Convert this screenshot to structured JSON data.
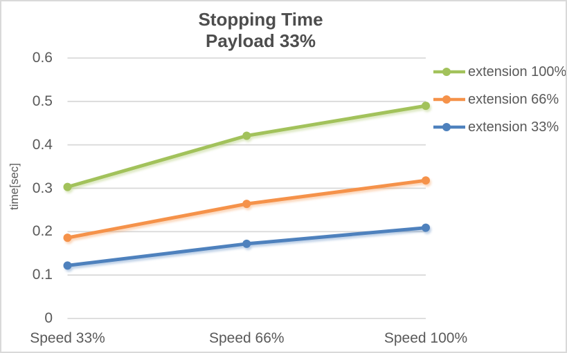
{
  "chart": {
    "title_line1": "Stopping Time",
    "title_line2": "Payload 33%",
    "y_axis_label": "time[sec]"
  },
  "chart_data": {
    "type": "line",
    "title": "Stopping Time Payload 33%",
    "categories": [
      "Speed 33%",
      "Speed 66%",
      "Speed 100%"
    ],
    "series": [
      {
        "name": "extension 100%",
        "color": "#A2C25B",
        "values": [
          0.303,
          0.421,
          0.49
        ]
      },
      {
        "name": "extension 66%",
        "color": "#F5924A",
        "values": [
          0.186,
          0.264,
          0.318
        ]
      },
      {
        "name": "extension 33%",
        "color": "#4E81BD",
        "values": [
          0.122,
          0.172,
          0.209
        ]
      }
    ],
    "xlabel": "",
    "ylabel": "time[sec]",
    "ylim": [
      0,
      0.6
    ],
    "y_ticks": [
      0.6,
      0.5,
      0.4,
      0.3,
      0.2,
      0.1,
      0
    ],
    "grid": true,
    "legend_position": "right"
  },
  "colors": {
    "title_text": "#4D4D4D",
    "axis_text": "#595959",
    "gridline": "#D9D9D9",
    "chart_border": "#D9D9D9",
    "background": "#FFFFFF"
  }
}
